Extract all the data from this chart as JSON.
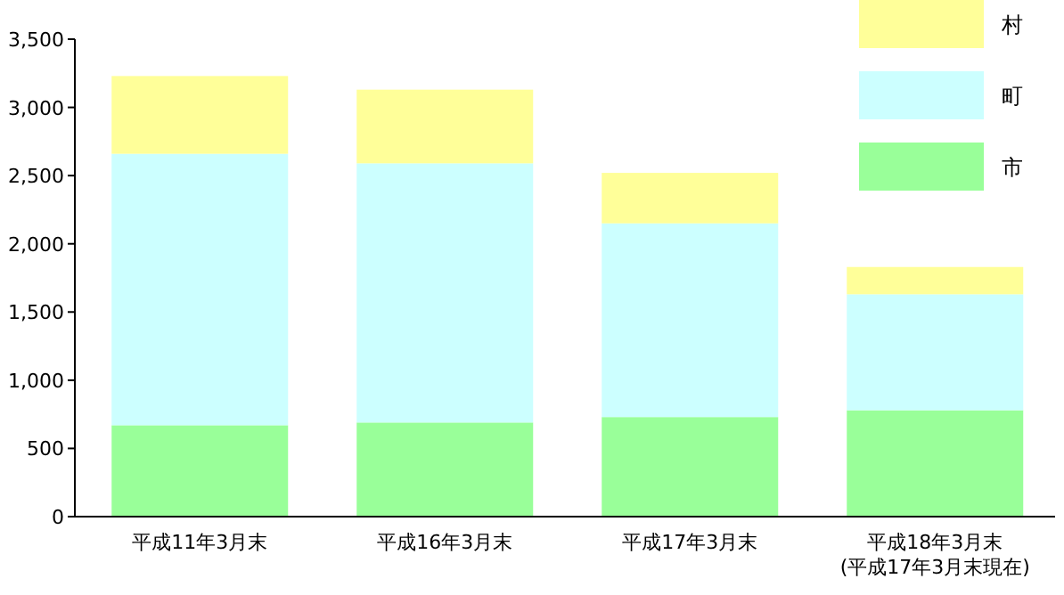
{
  "chart_data": {
    "type": "bar",
    "stacked": true,
    "categories": [
      "平成11年3月末",
      "平成16年3月末",
      "平成17年3月末",
      "平成18年3月末\n(平成17年3月末現在)"
    ],
    "series": [
      {
        "name": "市",
        "color": "#99ff99",
        "values": [
          670,
          690,
          730,
          780
        ]
      },
      {
        "name": "町",
        "color": "#ccffff",
        "values": [
          1990,
          1900,
          1420,
          850
        ]
      },
      {
        "name": "村",
        "color": "#ffff99",
        "values": [
          570,
          540,
          370,
          200
        ]
      }
    ],
    "ylim": [
      0,
      3500
    ],
    "yticks": [
      0,
      500,
      {
        "value": 1000,
        "label": "1,000"
      },
      {
        "value": 1500,
        "label": "1,500"
      },
      {
        "value": 2000,
        "label": "2,000"
      },
      {
        "value": 2500,
        "label": "2,500"
      },
      {
        "value": 3000,
        "label": "3,000"
      },
      {
        "value": 3500,
        "label": "3,500"
      }
    ],
    "legend": "top right",
    "grid": false
  }
}
